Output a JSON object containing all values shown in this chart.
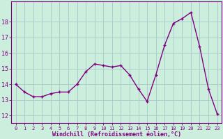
{
  "x": [
    0,
    1,
    2,
    3,
    4,
    5,
    6,
    7,
    8,
    9,
    10,
    11,
    12,
    13,
    14,
    15,
    16,
    17,
    18,
    19,
    20,
    21,
    22,
    23
  ],
  "y": [
    14.0,
    13.5,
    13.2,
    13.2,
    13.4,
    13.5,
    13.5,
    14.0,
    14.8,
    15.3,
    15.2,
    15.1,
    15.2,
    14.6,
    13.7,
    12.9,
    14.6,
    16.5,
    17.9,
    18.2,
    18.6,
    16.4,
    13.7,
    12.1
  ],
  "line_color": "#800080",
  "marker": "+",
  "bg_color": "#cceedd",
  "grid_color": "#aacccc",
  "xlabel": "Windchill (Refroidissement éolien,°C)",
  "xlabel_color": "#800080",
  "tick_color": "#800080",
  "ylabel_ticks": [
    12,
    13,
    14,
    15,
    16,
    17,
    18
  ],
  "ylim": [
    11.5,
    19.3
  ],
  "xlim": [
    -0.5,
    23.5
  ],
  "figsize": [
    3.2,
    2.0
  ],
  "dpi": 100,
  "xtick_fontsize": 5.0,
  "ytick_fontsize": 6.0,
  "xlabel_fontsize": 6.0,
  "marker_size": 3.5,
  "linewidth": 1.0
}
